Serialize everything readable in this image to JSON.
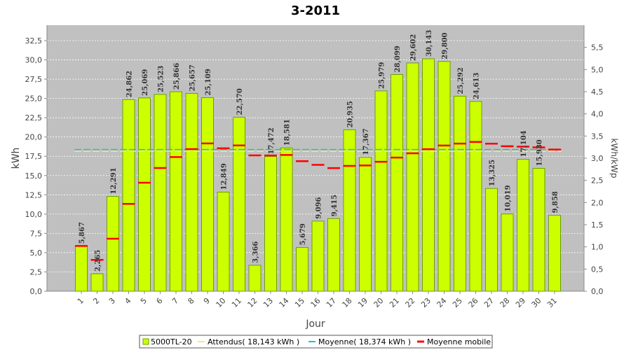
{
  "colors": {
    "plot_background": "#c0c0c0",
    "bar_fill": "#ccff00",
    "bar_stroke": "#6aa000",
    "expected_line": "#ffe08a",
    "average_line": "#20c0c8",
    "moving_average": "#ff0000"
  },
  "chart_data": {
    "type": "bar",
    "title": "3-2011",
    "xlabel": "Jour",
    "ylabel": "kWh",
    "y2label": "kWh/kWp",
    "ylim": [
      0,
      34.5
    ],
    "y2lim": [
      0,
      6.0
    ],
    "yticks": [
      "0,0",
      "2,5",
      "5,0",
      "7,5",
      "10,0",
      "12,5",
      "15,0",
      "17,5",
      "20,0",
      "22,5",
      "25,0",
      "27,5",
      "30,0",
      "32,5"
    ],
    "y2ticks": [
      "0,0",
      "0,5",
      "1,0",
      "1,5",
      "2,0",
      "2,5",
      "3,0",
      "3,5",
      "4,0",
      "4,5",
      "5,0",
      "5,5"
    ],
    "grid": true,
    "categories": [
      "1",
      "2",
      "3",
      "4",
      "5",
      "6",
      "7",
      "8",
      "9",
      "10",
      "11",
      "12",
      "13",
      "14",
      "15",
      "16",
      "17",
      "18",
      "19",
      "20",
      "21",
      "22",
      "23",
      "24",
      "25",
      "26",
      "27",
      "28",
      "29",
      "30",
      "31"
    ],
    "series": [
      {
        "name": "5000TL-20",
        "values": [
          5.867,
          2.265,
          12.291,
          24.862,
          25.069,
          25.523,
          25.866,
          25.657,
          25.109,
          12.849,
          22.57,
          3.366,
          17.472,
          18.581,
          5.679,
          9.096,
          9.415,
          20.935,
          17.367,
          25.979,
          28.099,
          29.602,
          30.143,
          29.8,
          25.292,
          24.613,
          13.325,
          10.019,
          17.104,
          15.93,
          9.858
        ],
        "labels": [
          "5,867",
          "2,265",
          "12,291",
          "24,862",
          "25,069",
          "25,523",
          "25,866",
          "25,657",
          "25,109",
          "12,849",
          "22,570",
          "3,366",
          "17,472",
          "18,581",
          "5,679",
          "9,096",
          "9,415",
          "20,935",
          "17,367",
          "25,979",
          "28,099",
          "29,602",
          "30,143",
          "29,800",
          "25,292",
          "24,613",
          "13,325",
          "10,019",
          "17,104",
          "15,930",
          "9,858"
        ]
      },
      {
        "name": "Attendus( 18,143 kWh )",
        "value": 18.143
      },
      {
        "name": "Moyenne( 18,374 kWh )",
        "value": 18.374
      },
      {
        "name": "Moyenne mobile",
        "values": [
          5.867,
          4.066,
          6.808,
          11.321,
          14.071,
          15.98,
          17.392,
          18.425,
          19.168,
          18.536,
          18.904,
          17.609,
          17.598,
          17.668,
          16.868,
          16.382,
          15.972,
          16.248,
          16.306,
          16.79,
          17.328,
          17.886,
          18.419,
          18.893,
          19.149,
          19.359,
          19.135,
          18.81,
          18.752,
          18.657,
          18.374
        ]
      }
    ],
    "legend": "bottom-center"
  }
}
